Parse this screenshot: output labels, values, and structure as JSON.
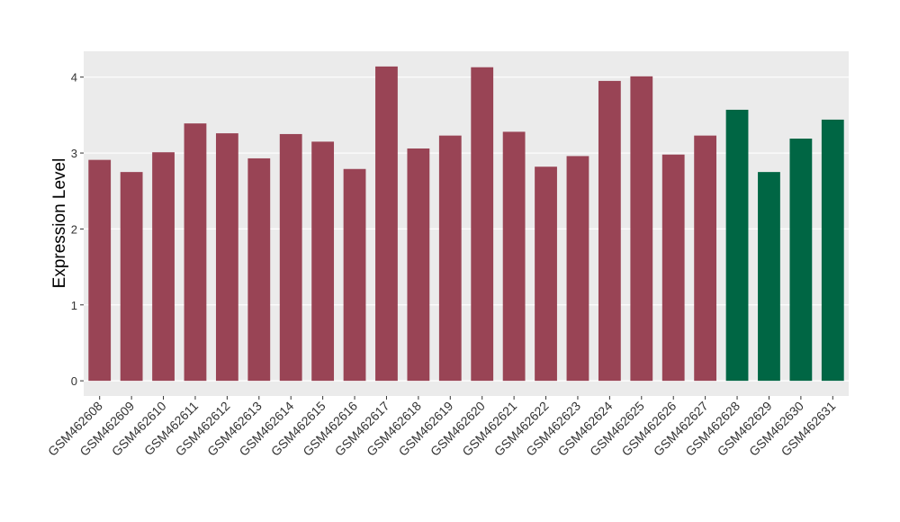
{
  "chart_data": {
    "type": "bar",
    "y_label": "Expression Level",
    "categories": [
      "GSM462608",
      "GSM462609",
      "GSM462610",
      "GSM462611",
      "GSM462612",
      "GSM462613",
      "GSM462614",
      "GSM462615",
      "GSM462616",
      "GSM462617",
      "GSM462618",
      "GSM462619",
      "GSM462620",
      "GSM462621",
      "GSM462622",
      "GSM462623",
      "GSM462624",
      "GSM462625",
      "GSM462626",
      "GSM462627",
      "GSM462628",
      "GSM462629",
      "GSM462630",
      "GSM462631"
    ],
    "values": [
      2.91,
      2.75,
      3.01,
      3.39,
      3.26,
      2.93,
      3.25,
      3.15,
      2.79,
      4.14,
      3.06,
      3.23,
      4.13,
      3.28,
      2.82,
      2.96,
      3.95,
      4.01,
      2.98,
      3.23,
      3.57,
      2.75,
      3.19,
      3.44
    ],
    "colors": [
      "#994455",
      "#994455",
      "#994455",
      "#994455",
      "#994455",
      "#994455",
      "#994455",
      "#994455",
      "#994455",
      "#994455",
      "#994455",
      "#994455",
      "#994455",
      "#994455",
      "#994455",
      "#994455",
      "#994455",
      "#994455",
      "#994455",
      "#994455",
      "#006644",
      "#006644",
      "#006644",
      "#006644"
    ],
    "ylim": [
      -0.2,
      4.34
    ],
    "yticks": [
      0,
      1,
      2,
      3,
      4
    ],
    "grid": true
  }
}
